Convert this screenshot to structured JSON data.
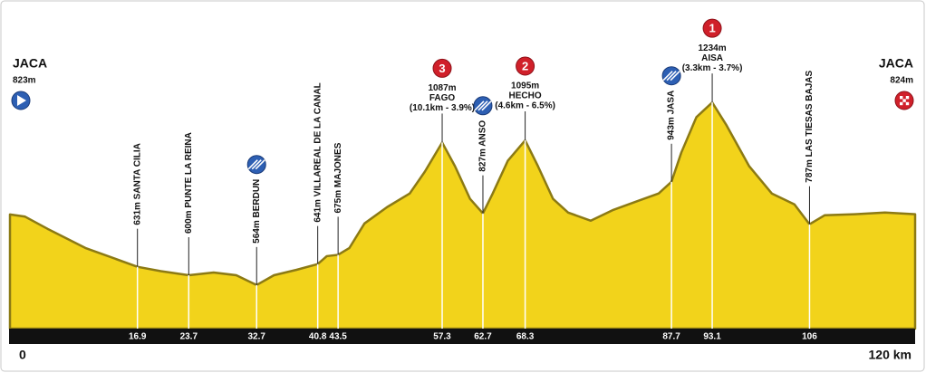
{
  "chart_data": {
    "type": "area",
    "color": "#f2d31b",
    "x": [
      0,
      2,
      5,
      10,
      16.9,
      20,
      23.7,
      27,
      30,
      32.7,
      35,
      38,
      40.8,
      42,
      43.5,
      45,
      47,
      50,
      53,
      55,
      57.3,
      59,
      61,
      62.7,
      64,
      66,
      68.3,
      70,
      72,
      74,
      77,
      80,
      83,
      86,
      87.7,
      89,
      91,
      93.1,
      95,
      98,
      101,
      104,
      106,
      108,
      112,
      116,
      120
    ],
    "values": [
      823,
      815,
      770,
      700,
      631,
      615,
      600,
      610,
      600,
      564,
      600,
      620,
      641,
      670,
      675,
      700,
      790,
      850,
      900,
      980,
      1087,
      1000,
      880,
      827,
      900,
      1020,
      1095,
      1000,
      880,
      830,
      800,
      840,
      870,
      900,
      943,
      1050,
      1180,
      1234,
      1150,
      1000,
      900,
      860,
      787,
      820,
      824,
      830,
      824
    ],
    "xlim": [
      0,
      120
    ],
    "ylim": [
      404,
      1610
    ],
    "xticks": [
      0,
      {
        "value": 120,
        "label": "120 km"
      }
    ],
    "start": {
      "name": "JACA",
      "elevation": "823m"
    },
    "finish": {
      "name": "JACA",
      "elevation": "824m"
    },
    "waypoints": [
      {
        "km": 16.9,
        "elevation": 631,
        "label": "631m SANTA CILIA"
      },
      {
        "km": 23.7,
        "elevation": 600,
        "label": "600m PUNTE LA REINA"
      },
      {
        "km": 32.7,
        "elevation": 564,
        "label": "564m BERDUN",
        "icon": "sprint"
      },
      {
        "km": 40.8,
        "elevation": 641,
        "label": "641m VILLAREAL DE LA CANAL"
      },
      {
        "km": 43.5,
        "elevation": 675,
        "label": "675m MAJONES"
      },
      {
        "km": 57.3,
        "elevation": 1087,
        "elevation_label": "1087m",
        "label": "FAGO",
        "climb": "(10.1km - 3.9%)",
        "category": "3"
      },
      {
        "km": 62.7,
        "elevation": 827,
        "label": "827m ANSO",
        "icon": "sprint"
      },
      {
        "km": 68.3,
        "elevation": 1095,
        "elevation_label": "1095m",
        "label": "HECHO",
        "climb": "(4.6km - 6.5%)",
        "category": "2"
      },
      {
        "km": 87.7,
        "elevation": 943,
        "label": "943m JASA",
        "icon": "sprint"
      },
      {
        "km": 93.1,
        "elevation": 1234,
        "elevation_label": "1234m",
        "label": "AISA",
        "climb": "(3.3km - 3.7%)",
        "category": "1"
      },
      {
        "km": 106,
        "elevation": 787,
        "label": "787m LAS TIESAS BAJAS"
      }
    ]
  }
}
